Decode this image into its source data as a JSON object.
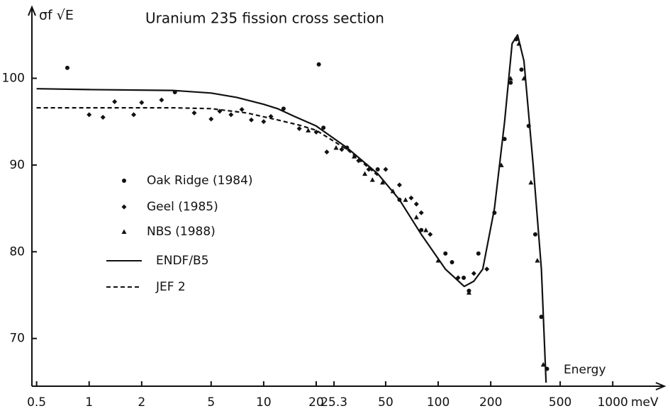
{
  "chart_data": {
    "type": "line",
    "title": "Uranium 235 fission cross section",
    "ylabel": "σf √E",
    "xlabel": "Energy",
    "xunit": "meV",
    "xscale": "log",
    "xlim": [
      0.47,
      1850
    ],
    "ylim": [
      64.5,
      107.8
    ],
    "xticks": [
      0.5,
      1,
      2,
      5,
      10,
      20,
      25.3,
      50,
      100,
      200,
      500,
      1000
    ],
    "yticks": [
      70,
      80,
      90,
      100
    ],
    "legend": "left",
    "series": [
      {
        "name": "Oak Ridge (1984)",
        "type": "scatter",
        "marker": "circle",
        "color": "#111111",
        "x": [
          0.75,
          3.1,
          13,
          20.7,
          22,
          30,
          45,
          60,
          80,
          110,
          120,
          140,
          150,
          170,
          210,
          240,
          260,
          280,
          300,
          330,
          360,
          390,
          420
        ],
        "values": [
          101.2,
          98.4,
          96.5,
          101.6,
          94.3,
          92,
          89.5,
          86,
          82.5,
          79.8,
          78.8,
          77,
          75.5,
          79.8,
          84.5,
          93,
          99.5,
          104.5,
          101,
          94.5,
          82,
          72.5,
          66.5
        ]
      },
      {
        "name": "Geel (1985)",
        "type": "scatter",
        "marker": "diamond",
        "color": "#111111",
        "x": [
          1,
          1.2,
          1.4,
          1.8,
          2,
          2.6,
          4,
          5,
          5.6,
          6.5,
          7.5,
          8.5,
          10,
          11,
          16,
          20,
          23,
          28,
          35,
          40,
          50,
          60,
          70,
          75,
          80,
          90,
          130,
          160,
          190
        ],
        "values": [
          95.8,
          95.5,
          97.3,
          95.8,
          97.2,
          97.5,
          96,
          95.3,
          96.2,
          95.8,
          96.4,
          95.2,
          95,
          95.6,
          94.2,
          93.8,
          91.5,
          91.8,
          90.5,
          89.5,
          89.5,
          87.7,
          86.2,
          85.5,
          84.5,
          82,
          77,
          77.5,
          78
        ]
      },
      {
        "name": "NBS (1988)",
        "type": "scatter",
        "marker": "triangle",
        "color": "#111111",
        "x": [
          18,
          26,
          33,
          38,
          42,
          48,
          55,
          65,
          75,
          85,
          100,
          150,
          230,
          260,
          290,
          310,
          340,
          370,
          400
        ],
        "values": [
          94,
          92,
          91,
          89,
          88.3,
          88,
          87,
          86,
          84,
          82.5,
          79,
          75.3,
          90,
          100,
          104,
          100,
          88,
          79,
          67
        ]
      },
      {
        "name": "ENDF/B5",
        "type": "line",
        "dash": "none",
        "color": "#111111",
        "x": [
          0.5,
          1,
          3,
          5,
          7,
          10,
          12,
          15,
          20,
          30,
          45,
          60,
          80,
          110,
          141,
          160,
          180,
          210,
          240,
          265,
          285,
          310,
          350,
          390,
          415
        ],
        "values": [
          98.8,
          98.7,
          98.6,
          98.3,
          97.8,
          97,
          96.5,
          95.6,
          94.5,
          92,
          89,
          86,
          82,
          78,
          76,
          76.6,
          78,
          85,
          95,
          104,
          105,
          102,
          90,
          78,
          64.9
        ]
      },
      {
        "name": "JEF 2",
        "type": "line",
        "dash": "6 4",
        "color": "#111111",
        "x": [
          0.5,
          1,
          3,
          5,
          8,
          12,
          16,
          20,
          30,
          45
        ],
        "values": [
          96.6,
          96.6,
          96.6,
          96.5,
          96,
          95.2,
          94.6,
          94,
          91.8,
          88.8
        ]
      }
    ]
  }
}
